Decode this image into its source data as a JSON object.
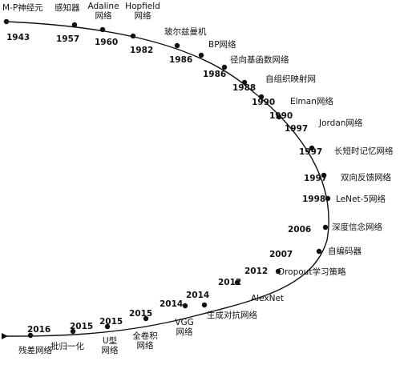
{
  "timeline": [
    {
      "year": "1943",
      "name": "M-P神经元"
    },
    {
      "year": "1957",
      "name": "感知器"
    },
    {
      "year": "1960",
      "name": "Adaline\n网络"
    },
    {
      "year": "1982",
      "name": "Hopfield\n网络"
    },
    {
      "year": "1986",
      "name": "玻尔兹曼机"
    },
    {
      "year": "1986",
      "name": "BP网络"
    },
    {
      "year": "1988",
      "name": "径向基函数网络"
    },
    {
      "year": "1990",
      "name": "自组织映射网"
    },
    {
      "year": "1990",
      "name": "Elman网络"
    },
    {
      "year": "1997",
      "name": "Jordan网络"
    },
    {
      "year": "1997",
      "name": "长短时记忆网络"
    },
    {
      "year": "1997",
      "name": "双向反馈网络"
    },
    {
      "year": "1998",
      "name": "LeNet-5网络"
    },
    {
      "year": "2006",
      "name": "深度信念网络"
    },
    {
      "year": "2007",
      "name": "自编码器"
    },
    {
      "year": "2012",
      "name": "Dropout学习策略"
    },
    {
      "year": "2012",
      "name": "AlexNet"
    },
    {
      "year": "2014",
      "name": "生成对抗网络"
    },
    {
      "year": "2014",
      "name": "VGG\n网络"
    },
    {
      "year": "2015",
      "name": "全卷积\n网络"
    },
    {
      "year": "2015",
      "name": "U型\n网络"
    },
    {
      "year": "2015",
      "name": "批归一化"
    },
    {
      "year": "2016",
      "name": "残差网络"
    }
  ]
}
